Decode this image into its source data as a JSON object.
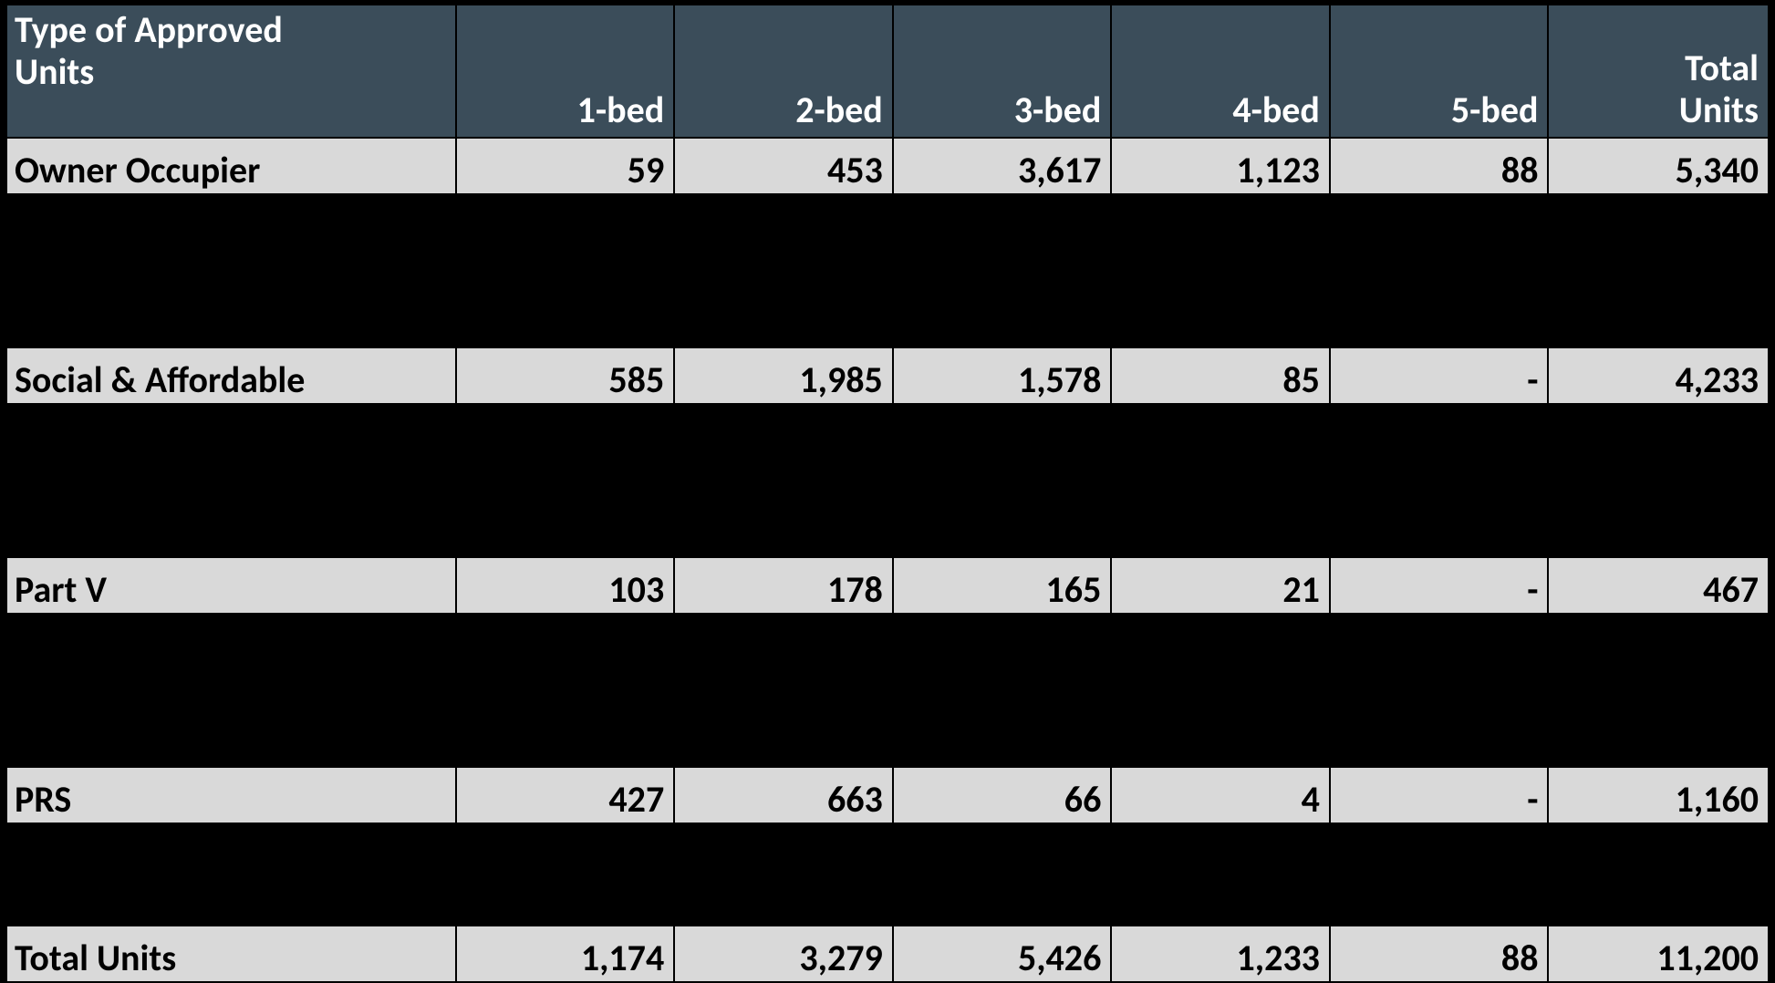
{
  "table": {
    "type": "table",
    "header_bg": "#3b4d5a",
    "header_text_color": "#ffffff",
    "row_bg": "#d9d9d9",
    "row_text_color": "#000000",
    "spacer_bg": "#000000",
    "border_color": "#000000",
    "font_family": "Calibri",
    "font_size_pt": 30,
    "font_weight": 700,
    "columns": {
      "label_header_line1": "Type of Approved",
      "label_header_line2": "Units",
      "c1": "1-bed",
      "c2": "2-bed",
      "c3": "3-bed",
      "c4": "4-bed",
      "c5": "5-bed",
      "total_line1": "Total",
      "total_line2": "Units"
    },
    "rows": [
      {
        "label": "Owner Occupier",
        "c1": "59",
        "c2": "453",
        "c3": "3,617",
        "c4": "1,123",
        "c5": "88",
        "total": "5,340"
      },
      {
        "label": "Social & Affordable",
        "c1": "585",
        "c2": "1,985",
        "c3": "1,578",
        "c4": "85",
        "c5": "-",
        "total": "4,233"
      },
      {
        "label": "Part V",
        "c1": "103",
        "c2": "178",
        "c3": "165",
        "c4": "21",
        "c5": "-",
        "total": "467"
      },
      {
        "label": "PRS",
        "c1": "427",
        "c2": "663",
        "c3": "66",
        "c4": "4",
        "c5": "-",
        "total": "1,160"
      },
      {
        "label": "Total Units",
        "c1": "1,174",
        "c2": "3,279",
        "c3": "5,426",
        "c4": "1,233",
        "c5": "88",
        "total": "11,200"
      }
    ]
  }
}
